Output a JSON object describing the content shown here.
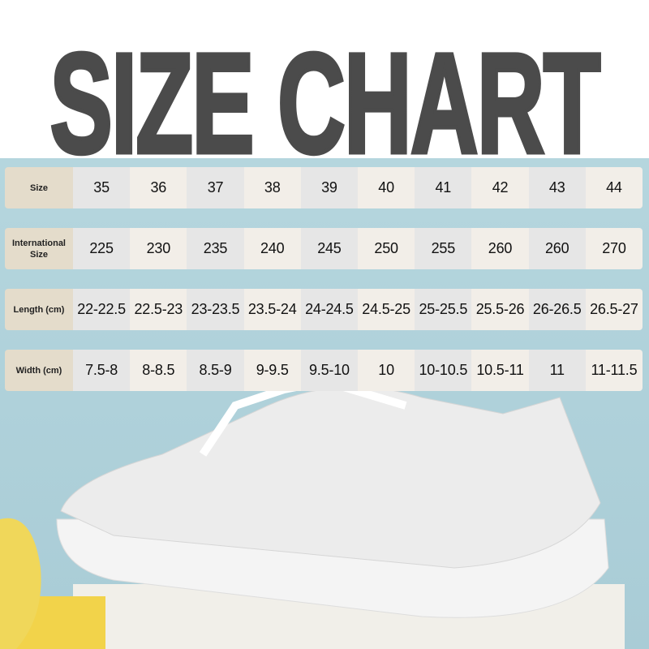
{
  "title": "SIZE CHART",
  "colors": {
    "title": "#4b4b4b",
    "background": "#b5d6de",
    "label_cell": "#e4dccb",
    "cell_a": "#e6e6e6",
    "cell_b": "#f2eee8"
  },
  "table": {
    "rows": [
      {
        "label": "Size",
        "values": [
          "35",
          "36",
          "37",
          "38",
          "39",
          "40",
          "41",
          "42",
          "43",
          "44"
        ]
      },
      {
        "label": "International Size",
        "values": [
          "225",
          "230",
          "235",
          "240",
          "245",
          "250",
          "255",
          "260",
          "260",
          "270"
        ]
      },
      {
        "label": "Length (cm)",
        "values": [
          "22-22.5",
          "22.5-23",
          "23-23.5",
          "23.5-24",
          "24-24.5",
          "24.5-25",
          "25-25.5",
          "25.5-26",
          "26-26.5",
          "26.5-27"
        ]
      },
      {
        "label": "Width (cm)",
        "values": [
          "7.5-8",
          "8-8.5",
          "8.5-9",
          "9-9.5",
          "9.5-10",
          "10",
          "10-10.5",
          "10.5-11",
          "11",
          "11-11.5"
        ]
      }
    ]
  }
}
